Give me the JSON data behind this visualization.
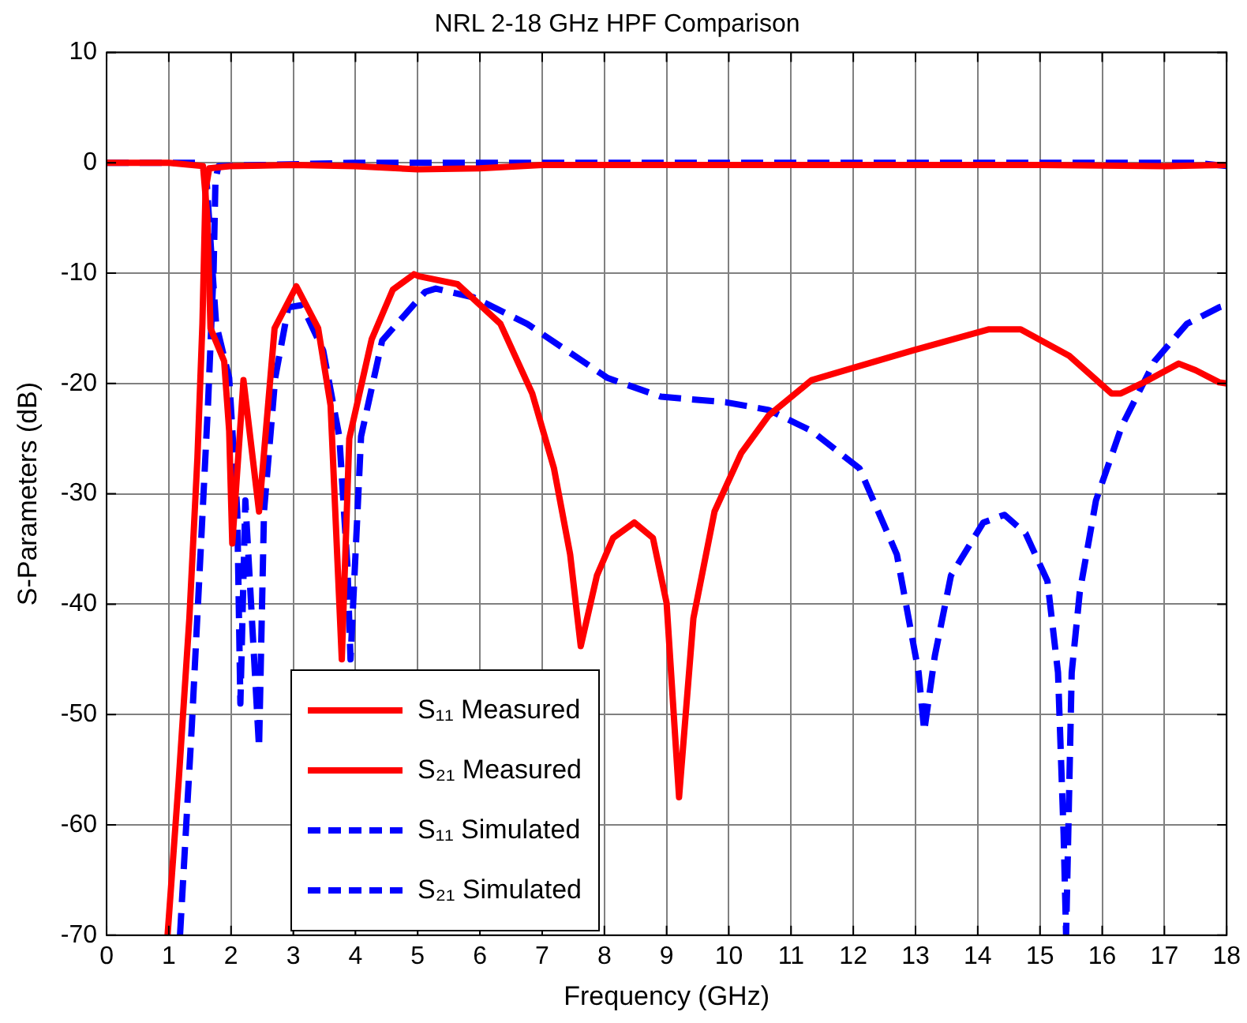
{
  "chart_data": {
    "type": "line",
    "title": "NRL 2-18 GHz HPF Comparison",
    "xlabel": "Frequency (GHz)",
    "ylabel": "S-Parameters (dB)",
    "xlim": [
      0,
      18
    ],
    "xticks": [
      0,
      1,
      2,
      3,
      4,
      5,
      6,
      7,
      8,
      9,
      10,
      11,
      12,
      13,
      14,
      15,
      16,
      17,
      18
    ],
    "ylim": [
      -70,
      10
    ],
    "yticks": [
      -70,
      -60,
      -50,
      -40,
      -30,
      -20,
      -10,
      0,
      10
    ],
    "grid": true,
    "legend": "bottom left",
    "marker": "none",
    "series": [
      {
        "name": "S₁₁ Measured",
        "color": "#ff0000",
        "line_style": "solid",
        "x": [
          0,
          1.0,
          1.55,
          1.62,
          1.67,
          1.89,
          1.97,
          2.02,
          2.2,
          2.45,
          2.7,
          3.05,
          3.4,
          3.6,
          3.78,
          3.9,
          4.26,
          4.6,
          4.94,
          5.03,
          5.64,
          6.33,
          6.84,
          7.19,
          7.45,
          7.62,
          7.88,
          8.14,
          8.48,
          8.78,
          9.0,
          9.2,
          9.43,
          9.77,
          10.2,
          10.64,
          11.33,
          11.93,
          12.96,
          14.17,
          14.69,
          15.47,
          16.15,
          16.3,
          16.67,
          17.23,
          17.5,
          17.88,
          18
        ],
        "values": [
          0,
          0,
          -0.3,
          -5,
          -15,
          -18,
          -24.3,
          -34.5,
          -19.7,
          -31.6,
          -15,
          -11.2,
          -15,
          -22,
          -45,
          -25,
          -16,
          -11.5,
          -10.1,
          -10.3,
          -11,
          -14.6,
          -20.9,
          -27.7,
          -35.5,
          -43.8,
          -37.4,
          -34,
          -32.6,
          -34,
          -39.9,
          -57.5,
          -41.3,
          -31.6,
          -26.3,
          -22.9,
          -19.7,
          -18.7,
          -17,
          -15.1,
          -15.1,
          -17.5,
          -20.9,
          -20.9,
          -19.9,
          -18.2,
          -18.8,
          -19.9,
          -20
        ]
      },
      {
        "name": "S₂₁ Measured",
        "color": "#ff0000",
        "line_style": "solid",
        "x": [
          0.98,
          1.16,
          1.33,
          1.46,
          1.54,
          1.59,
          1.65,
          2,
          3,
          4,
          5,
          6,
          7,
          9,
          11,
          13,
          15,
          17,
          18
        ],
        "values": [
          -70,
          -55.9,
          -41.3,
          -26.7,
          -14.6,
          -2.5,
          -0.5,
          -0.3,
          -0.2,
          -0.3,
          -0.6,
          -0.5,
          -0.2,
          -0.2,
          -0.2,
          -0.2,
          -0.2,
          -0.3,
          -0.2
        ]
      },
      {
        "name": "S₁₁ Simulated",
        "color": "#0000ff",
        "line_style": "dashed",
        "x": [
          0,
          1.5,
          1.6,
          1.68,
          1.76,
          1.97,
          2.1,
          2.15,
          2.23,
          2.45,
          2.53,
          2.71,
          2.92,
          3.14,
          3.48,
          3.74,
          3.87,
          3.92,
          4.09,
          4.43,
          5.12,
          5.29,
          5.9,
          6.76,
          8.05,
          8.91,
          9.95,
          10.64,
          11.33,
          12.1,
          12.7,
          13.05,
          13.14,
          13.31,
          13.57,
          14.09,
          14.43,
          14.77,
          15.12,
          15.29,
          15.38,
          15.42,
          15.51,
          15.64,
          15.9,
          16.32,
          16.84,
          17.36,
          17.88,
          18
        ],
        "values": [
          0,
          0,
          -1,
          -8,
          -14.6,
          -19.5,
          -31.6,
          -49,
          -30.6,
          -53,
          -31.6,
          -19.5,
          -13.1,
          -12.9,
          -17,
          -24.8,
          -36.5,
          -45,
          -24.8,
          -16.1,
          -11.7,
          -11.4,
          -12.2,
          -14.6,
          -19.5,
          -21.2,
          -21.7,
          -22.4,
          -24.3,
          -27.7,
          -35.5,
          -46.2,
          -51.5,
          -44.7,
          -37.4,
          -32.6,
          -31.9,
          -33.6,
          -37.9,
          -46.2,
          -60.8,
          -70,
          -46.2,
          -38.9,
          -30.6,
          -23.8,
          -18,
          -14.6,
          -13.1,
          -12.9
        ]
      },
      {
        "name": "S₂₁ Simulated",
        "color": "#0000ff",
        "line_style": "dashed",
        "x": [
          1.18,
          1.37,
          1.5,
          1.63,
          1.72,
          1.75,
          1.8,
          4,
          8,
          12,
          16,
          17.5,
          18
        ],
        "values": [
          -70,
          -51,
          -36.5,
          -21.9,
          -9.7,
          -1.5,
          -0.3,
          0,
          0,
          0,
          0,
          0,
          -0.3
        ]
      }
    ]
  }
}
